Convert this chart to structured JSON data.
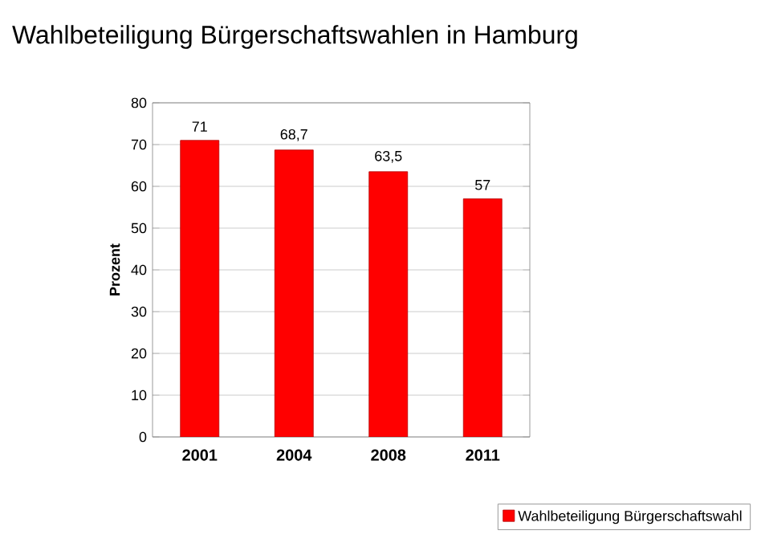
{
  "chart_data": {
    "type": "bar",
    "title": "Wahlbeteiligung Bürgerschaftswahlen in Hamburg",
    "ylabel": "Prozent",
    "categories": [
      "2001",
      "2004",
      "2008",
      "2011"
    ],
    "series": [
      {
        "name": "Wahlbeteiligung Bürgerschaftswahl",
        "color": "#ff0000",
        "values": [
          71,
          68.7,
          63.5,
          57
        ]
      }
    ],
    "value_labels": [
      "71",
      "68,7",
      "63,5",
      "57"
    ],
    "ylim": [
      0,
      80
    ],
    "yticks": [
      0,
      10,
      20,
      30,
      40,
      50,
      60,
      70,
      80
    ],
    "grid": "y",
    "legend": "bottom"
  }
}
